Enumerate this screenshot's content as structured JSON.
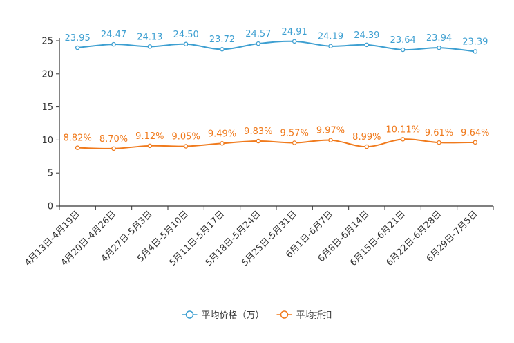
{
  "chart_data": {
    "type": "line",
    "title": "",
    "xlabel": "",
    "ylabel": "",
    "ylim": [
      0,
      25
    ],
    "yticks": [
      0,
      5,
      10,
      15,
      20,
      25
    ],
    "categories": [
      "4月13日-4月19日",
      "4月20日-4月26日",
      "4月27日-5月3日",
      "5月4日-5月10日",
      "5月11日-5月17日",
      "5月18日-5月24日",
      "5月25日-5月31日",
      "6月1日-6月7日",
      "6月8日-6月14日",
      "6月15日-6月21日",
      "6月22日-6月28日",
      "6月29日-7月5日"
    ],
    "series": [
      {
        "name": "平均价格（万）",
        "color": "#3d9fd1",
        "values": [
          23.95,
          24.47,
          24.13,
          24.5,
          23.72,
          24.57,
          24.91,
          24.19,
          24.39,
          23.64,
          23.94,
          23.39
        ],
        "labels": [
          "23.95",
          "24.47",
          "24.13",
          "24.50",
          "23.72",
          "24.57",
          "24.91",
          "24.19",
          "24.39",
          "23.64",
          "23.94",
          "23.39"
        ]
      },
      {
        "name": "平均折扣",
        "color": "#f07a1c",
        "values": [
          8.82,
          8.7,
          9.12,
          9.05,
          9.49,
          9.83,
          9.57,
          9.97,
          8.99,
          10.11,
          9.61,
          9.64
        ],
        "labels": [
          "8.82%",
          "8.70%",
          "9.12%",
          "9.05%",
          "9.49%",
          "9.83%",
          "9.57%",
          "9.97%",
          "8.99%",
          "10.11%",
          "9.61%",
          "9.64%"
        ]
      }
    ],
    "legend": "bottom-center",
    "grid": false
  }
}
